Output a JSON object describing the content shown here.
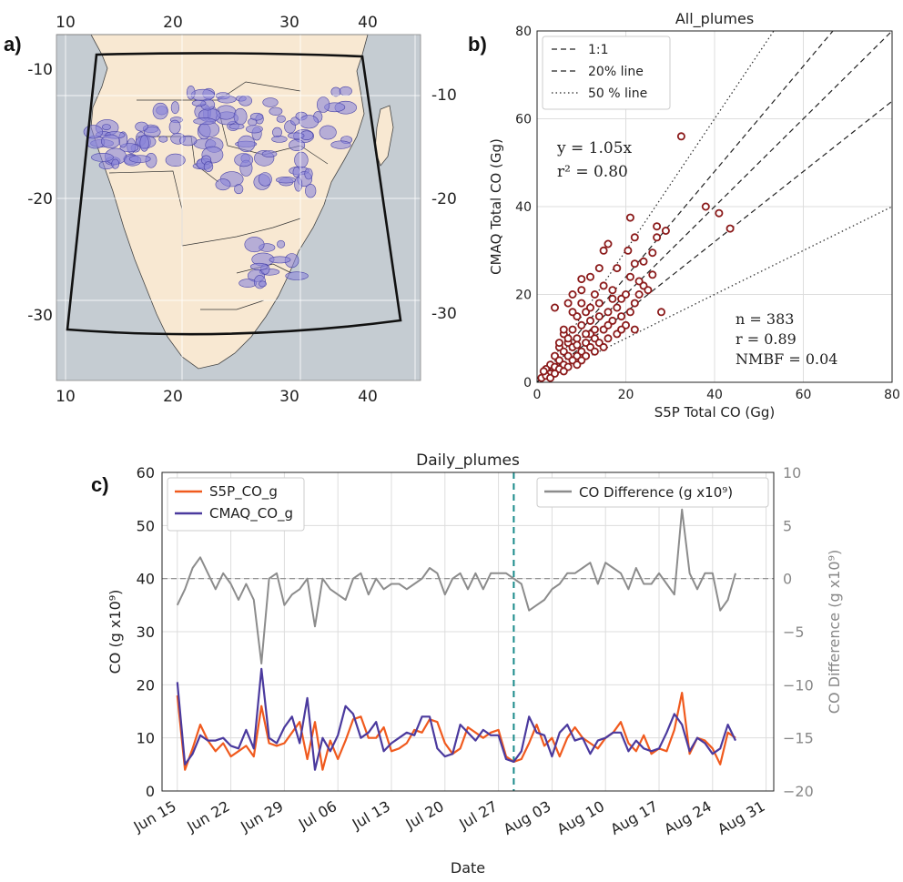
{
  "panels": {
    "a": "a)",
    "b": "b)",
    "c": "c)"
  },
  "chart_data": [
    {
      "type": "map",
      "panel": "a",
      "top_ticks": [
        "10",
        "20",
        "30",
        "40"
      ],
      "bottom_ticks": [
        "10",
        "20",
        "30",
        "40"
      ],
      "left_ticks": [
        "-10",
        "-20",
        "-30"
      ],
      "right_ticks": [
        "-10",
        "-20",
        "-30"
      ],
      "colors": {
        "ocean": "#c5ccd2",
        "land": "#f8e8d2",
        "plume": "#8b86d9",
        "domain": "#111111"
      }
    },
    {
      "type": "scatter",
      "panel": "b",
      "title": "All_plumes",
      "xlabel": "S5P Total CO (Gg)",
      "ylabel": "CMAQ Total CO (Gg)",
      "xlim": [
        0,
        80
      ],
      "ylim": [
        0,
        80
      ],
      "xticks": [
        "0",
        "20",
        "40",
        "60",
        "80"
      ],
      "yticks": [
        "0",
        "20",
        "40",
        "60",
        "80"
      ],
      "grid": true,
      "legend_position": "top-left",
      "legend": [
        "1:1",
        "20% line",
        "50 % line"
      ],
      "lines": [
        {
          "name": "1:1",
          "slope": 1.0,
          "style": "dashed"
        },
        {
          "name": "20% line",
          "slope": 1.2,
          "style": "dashed"
        },
        {
          "name": "20% line",
          "slope": 0.8,
          "style": "dashed"
        },
        {
          "name": "50 % line",
          "slope": 1.5,
          "style": "dotted"
        },
        {
          "name": "50 % line",
          "slope": 0.5,
          "style": "dotted"
        }
      ],
      "fit_text": [
        "y = 1.05x",
        "r² = 0.80"
      ],
      "stats_text": [
        "n = 383",
        "r = 0.89",
        "NMBF = 0.04"
      ],
      "marker_color": "#8b1a1a",
      "points": [
        [
          32.5,
          56
        ],
        [
          38,
          40
        ],
        [
          41,
          38.5
        ],
        [
          43.5,
          35
        ],
        [
          21,
          37.5
        ],
        [
          29,
          34.5
        ],
        [
          27,
          35.5
        ],
        [
          22,
          33
        ],
        [
          27,
          33
        ],
        [
          16,
          31.5
        ],
        [
          20.5,
          30
        ],
        [
          15,
          30
        ],
        [
          26,
          29.5
        ],
        [
          24,
          27.5
        ],
        [
          22,
          27
        ],
        [
          21,
          24
        ],
        [
          26,
          24.5
        ],
        [
          28,
          16
        ],
        [
          22,
          12
        ],
        [
          17,
          19
        ],
        [
          18,
          26
        ],
        [
          14,
          26
        ],
        [
          12,
          24
        ],
        [
          10,
          23.5
        ],
        [
          8,
          20
        ],
        [
          4,
          17
        ],
        [
          7,
          18
        ],
        [
          10,
          21
        ],
        [
          13,
          20
        ],
        [
          15,
          22
        ],
        [
          14,
          18
        ],
        [
          18,
          17
        ],
        [
          11,
          16
        ],
        [
          16,
          16
        ],
        [
          9,
          15
        ],
        [
          12,
          14
        ],
        [
          14,
          15
        ],
        [
          17,
          14
        ],
        [
          19,
          15
        ],
        [
          20,
          13
        ],
        [
          8,
          12
        ],
        [
          10,
          13
        ],
        [
          12,
          11
        ],
        [
          15,
          12
        ],
        [
          16,
          10
        ],
        [
          6,
          11
        ],
        [
          7,
          9
        ],
        [
          9,
          10
        ],
        [
          11,
          9
        ],
        [
          13,
          10
        ],
        [
          5,
          8
        ],
        [
          6,
          7
        ],
        [
          8,
          8
        ],
        [
          10,
          7
        ],
        [
          12,
          8
        ],
        [
          14,
          9
        ],
        [
          4,
          6
        ],
        [
          5,
          5
        ],
        [
          7,
          6
        ],
        [
          9,
          6
        ],
        [
          11,
          6
        ],
        [
          3,
          4
        ],
        [
          4,
          3.5
        ],
        [
          6,
          4
        ],
        [
          8,
          5
        ],
        [
          10,
          5
        ],
        [
          2,
          3
        ],
        [
          3,
          2
        ],
        [
          5,
          3
        ],
        [
          7,
          3.5
        ],
        [
          1,
          1
        ],
        [
          2,
          1.5
        ],
        [
          1.5,
          2.5
        ],
        [
          3,
          1
        ],
        [
          4,
          2
        ],
        [
          6,
          2.5
        ],
        [
          9,
          4
        ],
        [
          13,
          7
        ],
        [
          15,
          8
        ],
        [
          18,
          11
        ],
        [
          19,
          12
        ],
        [
          21,
          16
        ],
        [
          23,
          20
        ],
        [
          24,
          22
        ],
        [
          25,
          21
        ],
        [
          16,
          13
        ],
        [
          13,
          12
        ],
        [
          11,
          11
        ],
        [
          9,
          8.5
        ],
        [
          7,
          10
        ],
        [
          5,
          9
        ],
        [
          6,
          12
        ],
        [
          12,
          17
        ],
        [
          10,
          18
        ],
        [
          17,
          21
        ],
        [
          19,
          19
        ],
        [
          20,
          20
        ],
        [
          22,
          18
        ],
        [
          23,
          23
        ],
        [
          8,
          16
        ]
      ]
    },
    {
      "type": "line",
      "panel": "c",
      "title": "Daily_plumes",
      "xlabel": "Date",
      "ylabel": "CO (g x10⁹)",
      "ylabel_right": "CO Difference (g x10⁹)",
      "ylim": [
        0,
        60
      ],
      "ylim_right": [
        -20,
        10
      ],
      "yticks": [
        "0",
        "10",
        "20",
        "30",
        "40",
        "50",
        "60"
      ],
      "yticks_right": [
        "−20",
        "−15",
        "−10",
        "−5",
        "0",
        "5",
        "10"
      ],
      "xticks": [
        "Jun 15",
        "Jun 22",
        "Jun 29",
        "Jul 06",
        "Jul 13",
        "Jul 20",
        "Jul 27",
        "Aug 03",
        "Aug 10",
        "Aug 17",
        "Aug 24",
        "Aug 31"
      ],
      "x_range_days": [
        -2,
        78
      ],
      "grid": true,
      "vline_day": 44,
      "vline_color": "#1a8a8a",
      "zero_line_color": "#888888",
      "series": [
        {
          "name": "S5P_CO_g",
          "color": "#f05a1e",
          "values": [
            18,
            4,
            8,
            12.5,
            9.5,
            7.5,
            9,
            6.5,
            7.5,
            8.5,
            6.5,
            16,
            9,
            8.5,
            9,
            11,
            13,
            6,
            13,
            4,
            9.5,
            6,
            9.5,
            13.5,
            14,
            10,
            10,
            12,
            7.5,
            8,
            9,
            11.5,
            11,
            13.5,
            13,
            9,
            7,
            8,
            12,
            11,
            10,
            11,
            11.5,
            6.5,
            5.5,
            6,
            9,
            12.5,
            8.5,
            10,
            6.5,
            10,
            12,
            10,
            9,
            8,
            10,
            11,
            13,
            9,
            7.5,
            10.5,
            7,
            8,
            7.5,
            11.5,
            18.5,
            7,
            10,
            9.5,
            8,
            5,
            11,
            10
          ]
        },
        {
          "name": "CMAQ_CO_g",
          "color": "#4b3a9e",
          "values": [
            20.5,
            5,
            7,
            10.5,
            9.5,
            9.5,
            10,
            8.5,
            8,
            11.5,
            8,
            23,
            10,
            9,
            12,
            14,
            9,
            17.5,
            4,
            10,
            7.5,
            10.5,
            16,
            14.5,
            10,
            11,
            13,
            7.5,
            9,
            10,
            11,
            10.5,
            14,
            14,
            8,
            6.5,
            7,
            12.5,
            11,
            9.5,
            11.5,
            10.5,
            10.5,
            6,
            5.5,
            7.5,
            14,
            11,
            10.5,
            6.5,
            11,
            12.5,
            9.5,
            10,
            7,
            9.5,
            10,
            11,
            11,
            7.5,
            9.5,
            8,
            7.5,
            8,
            11,
            14.5,
            12.5,
            7.5,
            10,
            9,
            7,
            8,
            12.5,
            9.5
          ]
        },
        {
          "name": "CO Difference (g x10⁹)",
          "color": "#8c8c8c",
          "axis": "right",
          "values": [
            -2.5,
            -1,
            1,
            2,
            0.5,
            -1,
            0.5,
            -0.5,
            -2,
            -0.5,
            -2,
            -8,
            0,
            0.5,
            -2.5,
            -1.5,
            -1,
            0,
            -4.5,
            0,
            -1,
            -1.5,
            -2,
            0,
            0.5,
            -1.5,
            0,
            -1,
            -0.5,
            -0.5,
            -1,
            -0.5,
            0,
            1,
            0.5,
            -1.5,
            0,
            0.5,
            -1,
            0.5,
            -1,
            0.5,
            0.5,
            0.5,
            0,
            -0.5,
            -3,
            -2.5,
            -2,
            -1,
            -0.5,
            0.5,
            0.5,
            1,
            1.5,
            -0.5,
            1.5,
            1,
            0.5,
            -1,
            1,
            -0.5,
            -0.5,
            0.5,
            -0.5,
            -1.5,
            6.5,
            0.5,
            -1,
            0.5,
            0.5,
            -3,
            -2,
            0.5
          ]
        }
      ]
    }
  ]
}
